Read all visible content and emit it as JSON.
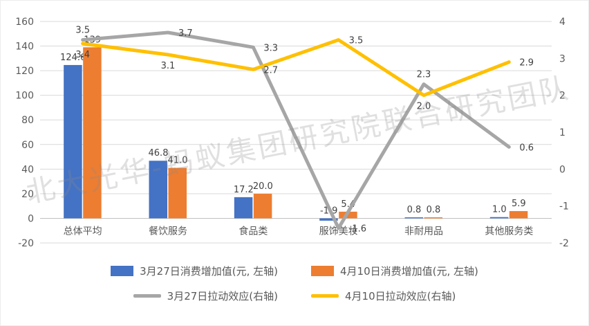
{
  "chart_data": {
    "type": "combo",
    "categories": [
      "总体平均",
      "餐饮服务",
      "食品类",
      "服饰美妆",
      "非耐用品",
      "其他服务类"
    ],
    "bar_series": [
      {
        "name": "3月27日消费增加值(元, 左轴)",
        "color": "#4472C4",
        "axis": "left",
        "values": [
          124.6,
          46.8,
          17.2,
          -1.9,
          0.8,
          1.0
        ],
        "labels": [
          "124.6",
          "46.8",
          "17.2",
          "-1.9",
          "0.8",
          "1.0"
        ]
      },
      {
        "name": "4月10日消费增加值(元, 左轴)",
        "color": "#ED7D31",
        "axis": "left",
        "values": [
          139,
          41.0,
          20.0,
          5.4,
          0.8,
          5.9
        ],
        "labels": [
          "139",
          "41.0",
          "20.0",
          "5.4",
          "0.8",
          "5.9"
        ]
      }
    ],
    "line_series": [
      {
        "name": "3月27日拉动效应(右轴)",
        "color": "#A6A6A6",
        "axis": "right",
        "values": [
          3.5,
          3.7,
          3.3,
          -1.6,
          2.3,
          0.6
        ],
        "labels": [
          "3.5",
          "3.7",
          "3.3",
          "-1.6",
          "2.3",
          "0.6"
        ],
        "label_pos": [
          "above",
          "right",
          "right",
          "right",
          "above",
          "right"
        ]
      },
      {
        "name": "4月10日拉动效应(右轴)",
        "color": "#FFC000",
        "axis": "right",
        "values": [
          3.4,
          3.1,
          2.7,
          3.5,
          2.0,
          2.9
        ],
        "labels": [
          "3.4",
          "3.1",
          "2.7",
          "3.5",
          "2.0",
          "2.9"
        ],
        "label_pos": [
          "below",
          "below",
          "right",
          "right",
          "below",
          "right"
        ]
      }
    ],
    "left_axis": {
      "min": -20,
      "max": 160,
      "step": 20,
      "ticks": [
        "160",
        "140",
        "120",
        "100",
        "80",
        "60",
        "40",
        "20",
        "0",
        "-20"
      ]
    },
    "right_axis": {
      "min": -2,
      "max": 4,
      "step": 1,
      "ticks": [
        "4",
        "3",
        "2",
        "1",
        "0",
        "-1",
        "-2"
      ]
    },
    "grid": true,
    "legend_position": "bottom",
    "gridline_color": "#D9D9D9",
    "axis_line_color": "#BFBFBF",
    "watermark": "北大光华-蚂蚁集团研究院联合研究团队"
  }
}
